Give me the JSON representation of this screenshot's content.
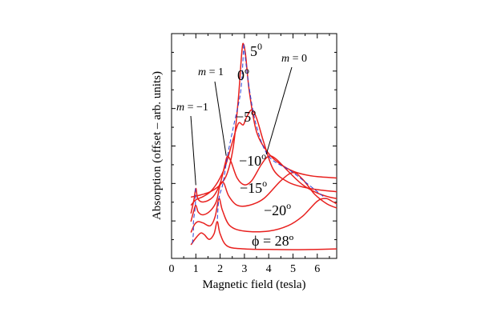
{
  "chart_data": {
    "type": "line",
    "title": "",
    "xlabel": "Magnetic field (tesla)",
    "ylabel": "Absorption (offset – arb. units)",
    "xlim": [
      0,
      6.8
    ],
    "x_ticks": [
      "0",
      "1",
      "2",
      "3",
      "4",
      "5",
      "6"
    ],
    "y_scale": "offset, arbitrary units (no tick labels)",
    "grid": false,
    "parameter_label": "ϕ = 28º",
    "curve_color": "#e8201e",
    "guide_color": "#2a3fd6",
    "series": [
      {
        "name": "5º",
        "label": "5",
        "label_sup": "0",
        "points": [
          [
            0.8,
            0.6
          ],
          [
            0.9,
            0.62
          ],
          [
            1.2,
            0.68
          ],
          [
            1.6,
            0.8
          ],
          [
            2.0,
            1.05
          ],
          [
            2.3,
            1.5
          ],
          [
            2.55,
            2.5
          ],
          [
            2.75,
            4.2
          ],
          [
            2.9,
            6.0
          ],
          [
            2.97,
            6.2
          ],
          [
            3.05,
            5.8
          ],
          [
            3.2,
            4.5
          ],
          [
            3.5,
            3.0
          ],
          [
            4.0,
            2.2
          ],
          [
            4.5,
            1.8
          ],
          [
            5.0,
            1.55
          ],
          [
            5.5,
            1.42
          ],
          [
            6.0,
            1.35
          ],
          [
            6.8,
            1.3
          ]
        ]
      },
      {
        "name": "0º",
        "label": "0",
        "label_sup": "o",
        "points": [
          [
            0.8,
            0.3
          ],
          [
            1.0,
            0.5
          ],
          [
            1.3,
            0.62
          ],
          [
            1.6,
            0.8
          ],
          [
            1.9,
            1.15
          ],
          [
            2.2,
            1.7
          ],
          [
            2.5,
            2.6
          ],
          [
            2.75,
            3.3
          ],
          [
            2.95,
            3.25
          ],
          [
            3.1,
            3.55
          ],
          [
            3.3,
            3.8
          ],
          [
            3.5,
            3.5
          ],
          [
            3.8,
            2.6
          ],
          [
            4.2,
            1.6
          ],
          [
            4.8,
            1.15
          ],
          [
            5.5,
            0.95
          ],
          [
            6.2,
            0.85
          ],
          [
            6.8,
            0.8
          ]
        ]
      },
      {
        "name": "-5º",
        "label": "−5",
        "label_sup": "o",
        "points": [
          [
            0.8,
            0.0
          ],
          [
            0.92,
            0.5
          ],
          [
            1.0,
            0.92
          ],
          [
            1.08,
            0.55
          ],
          [
            1.3,
            0.42
          ],
          [
            1.7,
            0.6
          ],
          [
            2.0,
            1.1
          ],
          [
            2.2,
            1.8
          ],
          [
            2.3,
            2.1
          ],
          [
            2.45,
            1.9
          ],
          [
            2.7,
            1.3
          ],
          [
            3.0,
            1.05
          ],
          [
            3.3,
            1.2
          ],
          [
            3.7,
            1.8
          ],
          [
            4.0,
            2.1
          ],
          [
            4.3,
            2.0
          ],
          [
            4.8,
            1.55
          ],
          [
            5.4,
            1.05
          ],
          [
            6.0,
            0.75
          ],
          [
            6.5,
            0.6
          ],
          [
            6.8,
            0.55
          ]
        ]
      },
      {
        "name": "-10º",
        "label": "−10",
        "label_sup": "o",
        "points": [
          [
            0.8,
            -0.3
          ],
          [
            0.9,
            0.05
          ],
          [
            1.0,
            0.3
          ],
          [
            1.1,
            0.05
          ],
          [
            1.3,
            -0.05
          ],
          [
            1.6,
            0.1
          ],
          [
            1.85,
            0.45
          ],
          [
            2.0,
            1.05
          ],
          [
            2.15,
            1.12
          ],
          [
            2.35,
            0.65
          ],
          [
            2.7,
            0.3
          ],
          [
            3.2,
            0.3
          ],
          [
            3.8,
            0.55
          ],
          [
            4.5,
            1.2
          ],
          [
            5.0,
            1.5
          ],
          [
            5.4,
            1.25
          ],
          [
            5.9,
            0.7
          ],
          [
            6.4,
            0.35
          ],
          [
            6.8,
            0.2
          ]
        ]
      },
      {
        "name": "-15º",
        "label": "−15",
        "label_sup": "o",
        "points": [
          [
            0.8,
            -0.7
          ],
          [
            0.95,
            -0.4
          ],
          [
            1.1,
            -0.3
          ],
          [
            1.3,
            -0.35
          ],
          [
            1.6,
            -0.45
          ],
          [
            1.8,
            -0.1
          ],
          [
            1.95,
            0.55
          ],
          [
            2.1,
            0.1
          ],
          [
            2.4,
            -0.45
          ],
          [
            3.0,
            -0.65
          ],
          [
            4.0,
            -0.65
          ],
          [
            4.8,
            -0.45
          ],
          [
            5.4,
            -0.1
          ],
          [
            6.0,
            0.45
          ],
          [
            6.35,
            0.55
          ],
          [
            6.6,
            0.45
          ],
          [
            6.8,
            0.35
          ]
        ]
      },
      {
        "name": "-20º",
        "label": "−20",
        "label_sup": "o",
        "points": [
          [
            0.8,
            -1.15
          ],
          [
            1.0,
            -0.9
          ],
          [
            1.2,
            -0.72
          ],
          [
            1.35,
            -0.78
          ],
          [
            1.55,
            -0.95
          ],
          [
            1.75,
            -0.75
          ],
          [
            1.88,
            -0.3
          ],
          [
            2.0,
            -0.75
          ],
          [
            2.3,
            -1.2
          ],
          [
            3.0,
            -1.3
          ],
          [
            4.0,
            -1.32
          ],
          [
            5.0,
            -1.33
          ],
          [
            6.0,
            -1.32
          ],
          [
            6.8,
            -1.3
          ]
        ]
      }
    ],
    "guides": [
      {
        "name": "m = -1",
        "points": [
          [
            0.98,
            0.92
          ],
          [
            0.98,
            0.3
          ],
          [
            0.9,
            -0.3
          ],
          [
            0.9,
            -0.7
          ],
          [
            0.85,
            -1.15
          ]
        ]
      },
      {
        "name": "m = 1",
        "points": [
          [
            2.97,
            6.2
          ],
          [
            2.85,
            4.5
          ],
          [
            2.55,
            3.2
          ],
          [
            2.3,
            2.1
          ],
          [
            2.12,
            1.12
          ],
          [
            1.95,
            0.55
          ],
          [
            1.88,
            -0.3
          ]
        ]
      },
      {
        "name": "m = 0",
        "points": [
          [
            2.97,
            6.2
          ],
          [
            3.2,
            4.6
          ],
          [
            3.5,
            3.2
          ],
          [
            4.0,
            2.1
          ],
          [
            5.0,
            1.5
          ],
          [
            6.35,
            0.55
          ]
        ]
      }
    ],
    "annotations": [
      {
        "name": "m = -1",
        "symbol": "m",
        "text": " = −1",
        "target": [
          1.0,
          0.92
        ]
      },
      {
        "name": "m = 1",
        "symbol": "m",
        "text": " = 1",
        "target": [
          2.25,
          2.0
        ]
      },
      {
        "name": "m = 0",
        "symbol": "m",
        "text": " = 0",
        "target": [
          3.9,
          2.05
        ]
      }
    ]
  }
}
